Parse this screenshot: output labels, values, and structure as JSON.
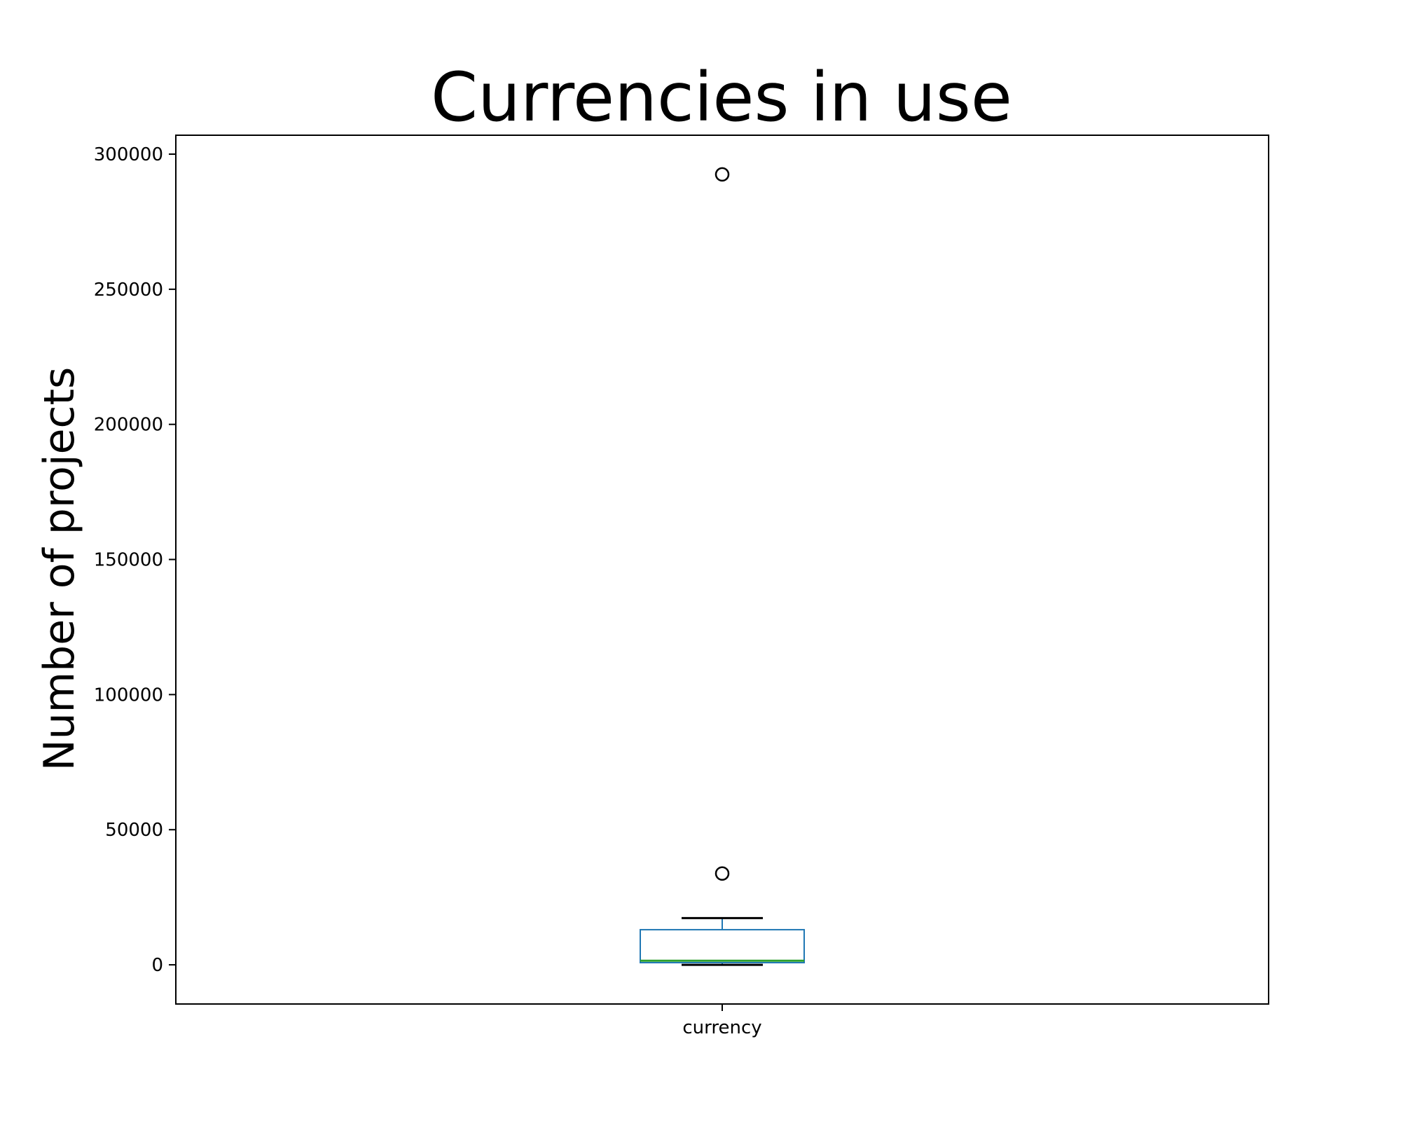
{
  "chart_data": {
    "type": "boxplot",
    "title": "Currencies in use",
    "xlabel": "",
    "ylabel": "Number of projects",
    "categories": [
      "currency"
    ],
    "ylim": [
      -14500,
      307000
    ],
    "yticks": [
      0,
      50000,
      100000,
      150000,
      200000,
      250000,
      300000
    ],
    "ytick_labels": [
      "0",
      "50000",
      "100000",
      "150000",
      "200000",
      "250000",
      "300000"
    ],
    "grid": false,
    "boxes": [
      {
        "category": "currency",
        "whisker_low": 0,
        "q1": 800,
        "median": 1500,
        "q3": 13000,
        "whisker_high": 17300,
        "outliers": [
          33800,
          292500
        ]
      }
    ],
    "colors": {
      "box": "#1f77b4",
      "median": "#2ca02c",
      "whisker": "#1f77b4",
      "cap": "#000000",
      "outlier": "#000000",
      "axes": "#000000"
    }
  }
}
